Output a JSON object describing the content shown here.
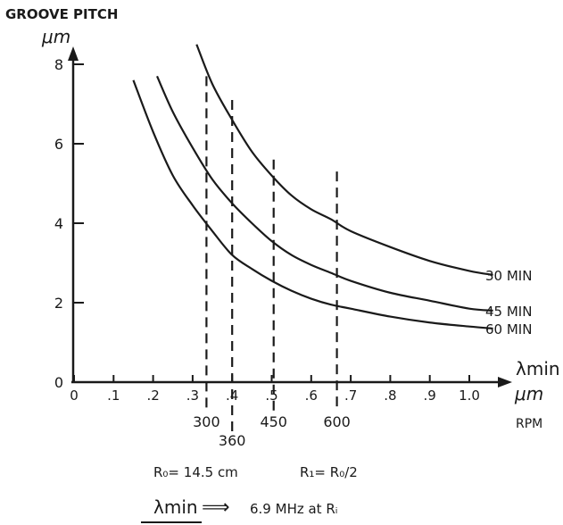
{
  "chart_data": {
    "type": "line",
    "title": "GROOVE PITCH",
    "ylabel": "μm",
    "xlabel": "λmin",
    "xunit": "μm",
    "rpm_label": "RPM",
    "xlim": [
      0,
      1.1
    ],
    "ylim": [
      0,
      8
    ],
    "xticks": [
      "0",
      ".1",
      ".2",
      ".3",
      ".4",
      ".5",
      ".6",
      ".7",
      ".8",
      ".9",
      "1.0"
    ],
    "yticks": [
      "0",
      "2",
      "4",
      "6",
      "8"
    ],
    "series": [
      {
        "name": "30 MIN",
        "x": [
          0.31,
          0.35,
          0.4,
          0.45,
          0.5,
          0.55,
          0.6,
          0.65,
          0.7,
          0.8,
          0.9,
          1.0,
          1.06
        ],
        "y": [
          8.5,
          7.5,
          6.6,
          5.8,
          5.2,
          4.7,
          4.35,
          4.1,
          3.8,
          3.4,
          3.05,
          2.8,
          2.7
        ]
      },
      {
        "name": "45 MIN",
        "x": [
          0.21,
          0.25,
          0.3,
          0.35,
          0.4,
          0.45,
          0.5,
          0.55,
          0.6,
          0.65,
          0.7,
          0.8,
          0.9,
          1.0,
          1.06
        ],
        "y": [
          7.7,
          6.8,
          5.9,
          5.1,
          4.5,
          4.0,
          3.55,
          3.2,
          2.95,
          2.75,
          2.55,
          2.25,
          2.05,
          1.85,
          1.8
        ]
      },
      {
        "name": "60 MIN",
        "x": [
          0.15,
          0.2,
          0.25,
          0.3,
          0.35,
          0.4,
          0.45,
          0.5,
          0.55,
          0.6,
          0.65,
          0.7,
          0.8,
          0.9,
          1.0,
          1.06
        ],
        "y": [
          7.6,
          6.3,
          5.2,
          4.45,
          3.8,
          3.2,
          2.85,
          2.55,
          2.3,
          2.1,
          1.95,
          1.85,
          1.65,
          1.5,
          1.4,
          1.35
        ]
      }
    ],
    "rpm_markers": [
      {
        "label": "300",
        "x": 0.335,
        "y_top": 7.7
      },
      {
        "label": "360",
        "x": 0.4,
        "y_top": 7.1
      },
      {
        "label": "450",
        "x": 0.505,
        "y_top": 5.6
      },
      {
        "label": "600",
        "x": 0.665,
        "y_top": 5.3
      }
    ],
    "annotations": {
      "r0": "R₀= 14.5 cm",
      "r1": "R₁= R₀/2",
      "lambda_min": "λmin",
      "arrow": "⟹",
      "freq": "6.9 MHz  at Rᵢ"
    }
  }
}
